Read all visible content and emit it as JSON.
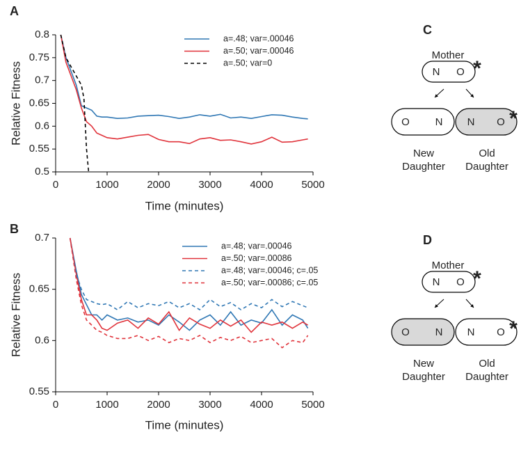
{
  "chart_data": [
    {
      "type": "line",
      "panel": "A",
      "ylabel": "Relative Fitness",
      "xlabel": "Time (minutes)",
      "xlim": [
        0,
        5000
      ],
      "xticks": [
        0,
        1000,
        2000,
        3000,
        4000,
        5000
      ],
      "ylim": [
        0.5,
        0.8
      ],
      "yticks": [
        0.5,
        0.55,
        0.6,
        0.65,
        0.7,
        0.75,
        0.8
      ],
      "series": [
        {
          "name": "a=.48; var=.00046",
          "color": "#2f77b4",
          "dashed": false,
          "x": [
            100,
            200,
            300,
            400,
            500,
            600,
            700,
            800,
            900,
            1000,
            1200,
            1400,
            1600,
            1800,
            2000,
            2200,
            2400,
            2600,
            2800,
            3000,
            3200,
            3400,
            3600,
            3800,
            4000,
            4200,
            4400,
            4600,
            4800,
            4900
          ],
          "values": [
            0.8,
            0.75,
            0.72,
            0.69,
            0.645,
            0.64,
            0.635,
            0.622,
            0.62,
            0.62,
            0.617,
            0.618,
            0.622,
            0.623,
            0.624,
            0.621,
            0.617,
            0.62,
            0.625,
            0.622,
            0.626,
            0.618,
            0.62,
            0.617,
            0.621,
            0.625,
            0.624,
            0.62,
            0.617,
            0.616
          ]
        },
        {
          "name": "a=.50; var=.00046",
          "color": "#e0323a",
          "dashed": false,
          "x": [
            100,
            200,
            300,
            400,
            500,
            600,
            700,
            800,
            900,
            1000,
            1200,
            1400,
            1600,
            1800,
            2000,
            2200,
            2400,
            2600,
            2800,
            3000,
            3200,
            3400,
            3600,
            3800,
            4000,
            4200,
            4400,
            4600,
            4800,
            4900
          ],
          "values": [
            0.8,
            0.74,
            0.71,
            0.68,
            0.64,
            0.61,
            0.6,
            0.585,
            0.58,
            0.575,
            0.572,
            0.576,
            0.58,
            0.582,
            0.571,
            0.566,
            0.566,
            0.562,
            0.572,
            0.575,
            0.569,
            0.57,
            0.566,
            0.561,
            0.566,
            0.576,
            0.565,
            0.566,
            0.57,
            0.572
          ]
        },
        {
          "name": "a=.50; var=0",
          "color": "#000000",
          "dashed": true,
          "x": [
            100,
            200,
            300,
            400,
            500,
            550,
            600,
            640
          ],
          "values": [
            0.8,
            0.75,
            0.73,
            0.71,
            0.69,
            0.66,
            0.55,
            0.5
          ]
        }
      ]
    },
    {
      "type": "line",
      "panel": "B",
      "ylabel": "Relative Fitness",
      "xlabel": "Time (minutes)",
      "xlim": [
        0,
        5000
      ],
      "xticks": [
        0,
        1000,
        2000,
        3000,
        4000,
        5000
      ],
      "ylim": [
        0.55,
        0.7
      ],
      "yticks": [
        0.55,
        0.6,
        0.65,
        0.7
      ],
      "series": [
        {
          "name": "a=.48; var=.00046",
          "color": "#2f77b4",
          "dashed": false,
          "x": [
            280,
            400,
            500,
            600,
            700,
            800,
            900,
            1000,
            1200,
            1400,
            1600,
            1800,
            2000,
            2200,
            2400,
            2600,
            2800,
            3000,
            3200,
            3400,
            3600,
            3800,
            4000,
            4200,
            4400,
            4600,
            4800,
            4900
          ],
          "values": [
            0.7,
            0.668,
            0.645,
            0.635,
            0.625,
            0.625,
            0.62,
            0.625,
            0.62,
            0.622,
            0.618,
            0.62,
            0.615,
            0.625,
            0.618,
            0.61,
            0.62,
            0.625,
            0.615,
            0.628,
            0.615,
            0.62,
            0.617,
            0.63,
            0.615,
            0.625,
            0.62,
            0.612
          ]
        },
        {
          "name": "a=.50; var=.00086",
          "color": "#e0323a",
          "dashed": false,
          "x": [
            280,
            400,
            500,
            600,
            700,
            800,
            900,
            1000,
            1200,
            1400,
            1600,
            1800,
            2000,
            2200,
            2400,
            2600,
            2800,
            3000,
            3200,
            3400,
            3600,
            3800,
            4000,
            4200,
            4400,
            4600,
            4800,
            4900
          ],
          "values": [
            0.7,
            0.665,
            0.64,
            0.625,
            0.625,
            0.62,
            0.612,
            0.61,
            0.617,
            0.62,
            0.612,
            0.622,
            0.616,
            0.628,
            0.61,
            0.622,
            0.616,
            0.612,
            0.62,
            0.614,
            0.62,
            0.608,
            0.618,
            0.615,
            0.618,
            0.612,
            0.618,
            0.615
          ]
        },
        {
          "name": "a=.48; var=.00046; c=.05",
          "color": "#2f77b4",
          "dashed": true,
          "x": [
            280,
            400,
            500,
            600,
            700,
            800,
            900,
            1000,
            1200,
            1400,
            1600,
            1800,
            2000,
            2200,
            2400,
            2600,
            2800,
            3000,
            3200,
            3400,
            3600,
            3800,
            4000,
            4200,
            4400,
            4600,
            4800,
            4900
          ],
          "values": [
            0.7,
            0.665,
            0.65,
            0.64,
            0.638,
            0.636,
            0.635,
            0.636,
            0.63,
            0.638,
            0.632,
            0.636,
            0.634,
            0.638,
            0.632,
            0.636,
            0.63,
            0.64,
            0.633,
            0.637,
            0.63,
            0.636,
            0.632,
            0.64,
            0.633,
            0.638,
            0.634,
            0.632
          ]
        },
        {
          "name": "a=.50; var=.00086; c=.05",
          "color": "#e0323a",
          "dashed": true,
          "x": [
            280,
            400,
            500,
            600,
            700,
            800,
            900,
            1000,
            1200,
            1400,
            1600,
            1800,
            2000,
            2200,
            2400,
            2600,
            2800,
            3000,
            3200,
            3400,
            3600,
            3800,
            4000,
            4200,
            4400,
            4600,
            4800,
            4900
          ],
          "values": [
            0.7,
            0.66,
            0.635,
            0.62,
            0.615,
            0.61,
            0.608,
            0.605,
            0.602,
            0.602,
            0.605,
            0.6,
            0.604,
            0.598,
            0.602,
            0.6,
            0.605,
            0.598,
            0.603,
            0.6,
            0.604,
            0.598,
            0.6,
            0.602,
            0.593,
            0.6,
            0.598,
            0.605
          ]
        }
      ]
    }
  ],
  "diagrams": [
    {
      "panel": "C",
      "mother": {
        "label": "Mother",
        "left": "N",
        "right": "O",
        "mark": "*"
      },
      "daughters": [
        {
          "left": "O",
          "right": "N",
          "caption": [
            "New",
            "Daughter"
          ],
          "shaded": false
        },
        {
          "left": "N",
          "right": "O",
          "mark": "*",
          "caption": [
            "Old",
            "Daughter"
          ],
          "shaded": true
        }
      ]
    },
    {
      "panel": "D",
      "mother": {
        "label": "Mother",
        "left": "N",
        "right": "O",
        "mark": "*"
      },
      "daughters": [
        {
          "left": "O",
          "right": "N",
          "caption": [
            "New",
            "Daughter"
          ],
          "shaded": true
        },
        {
          "left": "N",
          "right": "O",
          "mark": "*",
          "caption": [
            "Old",
            "Daughter"
          ],
          "shaded": false
        }
      ]
    }
  ]
}
